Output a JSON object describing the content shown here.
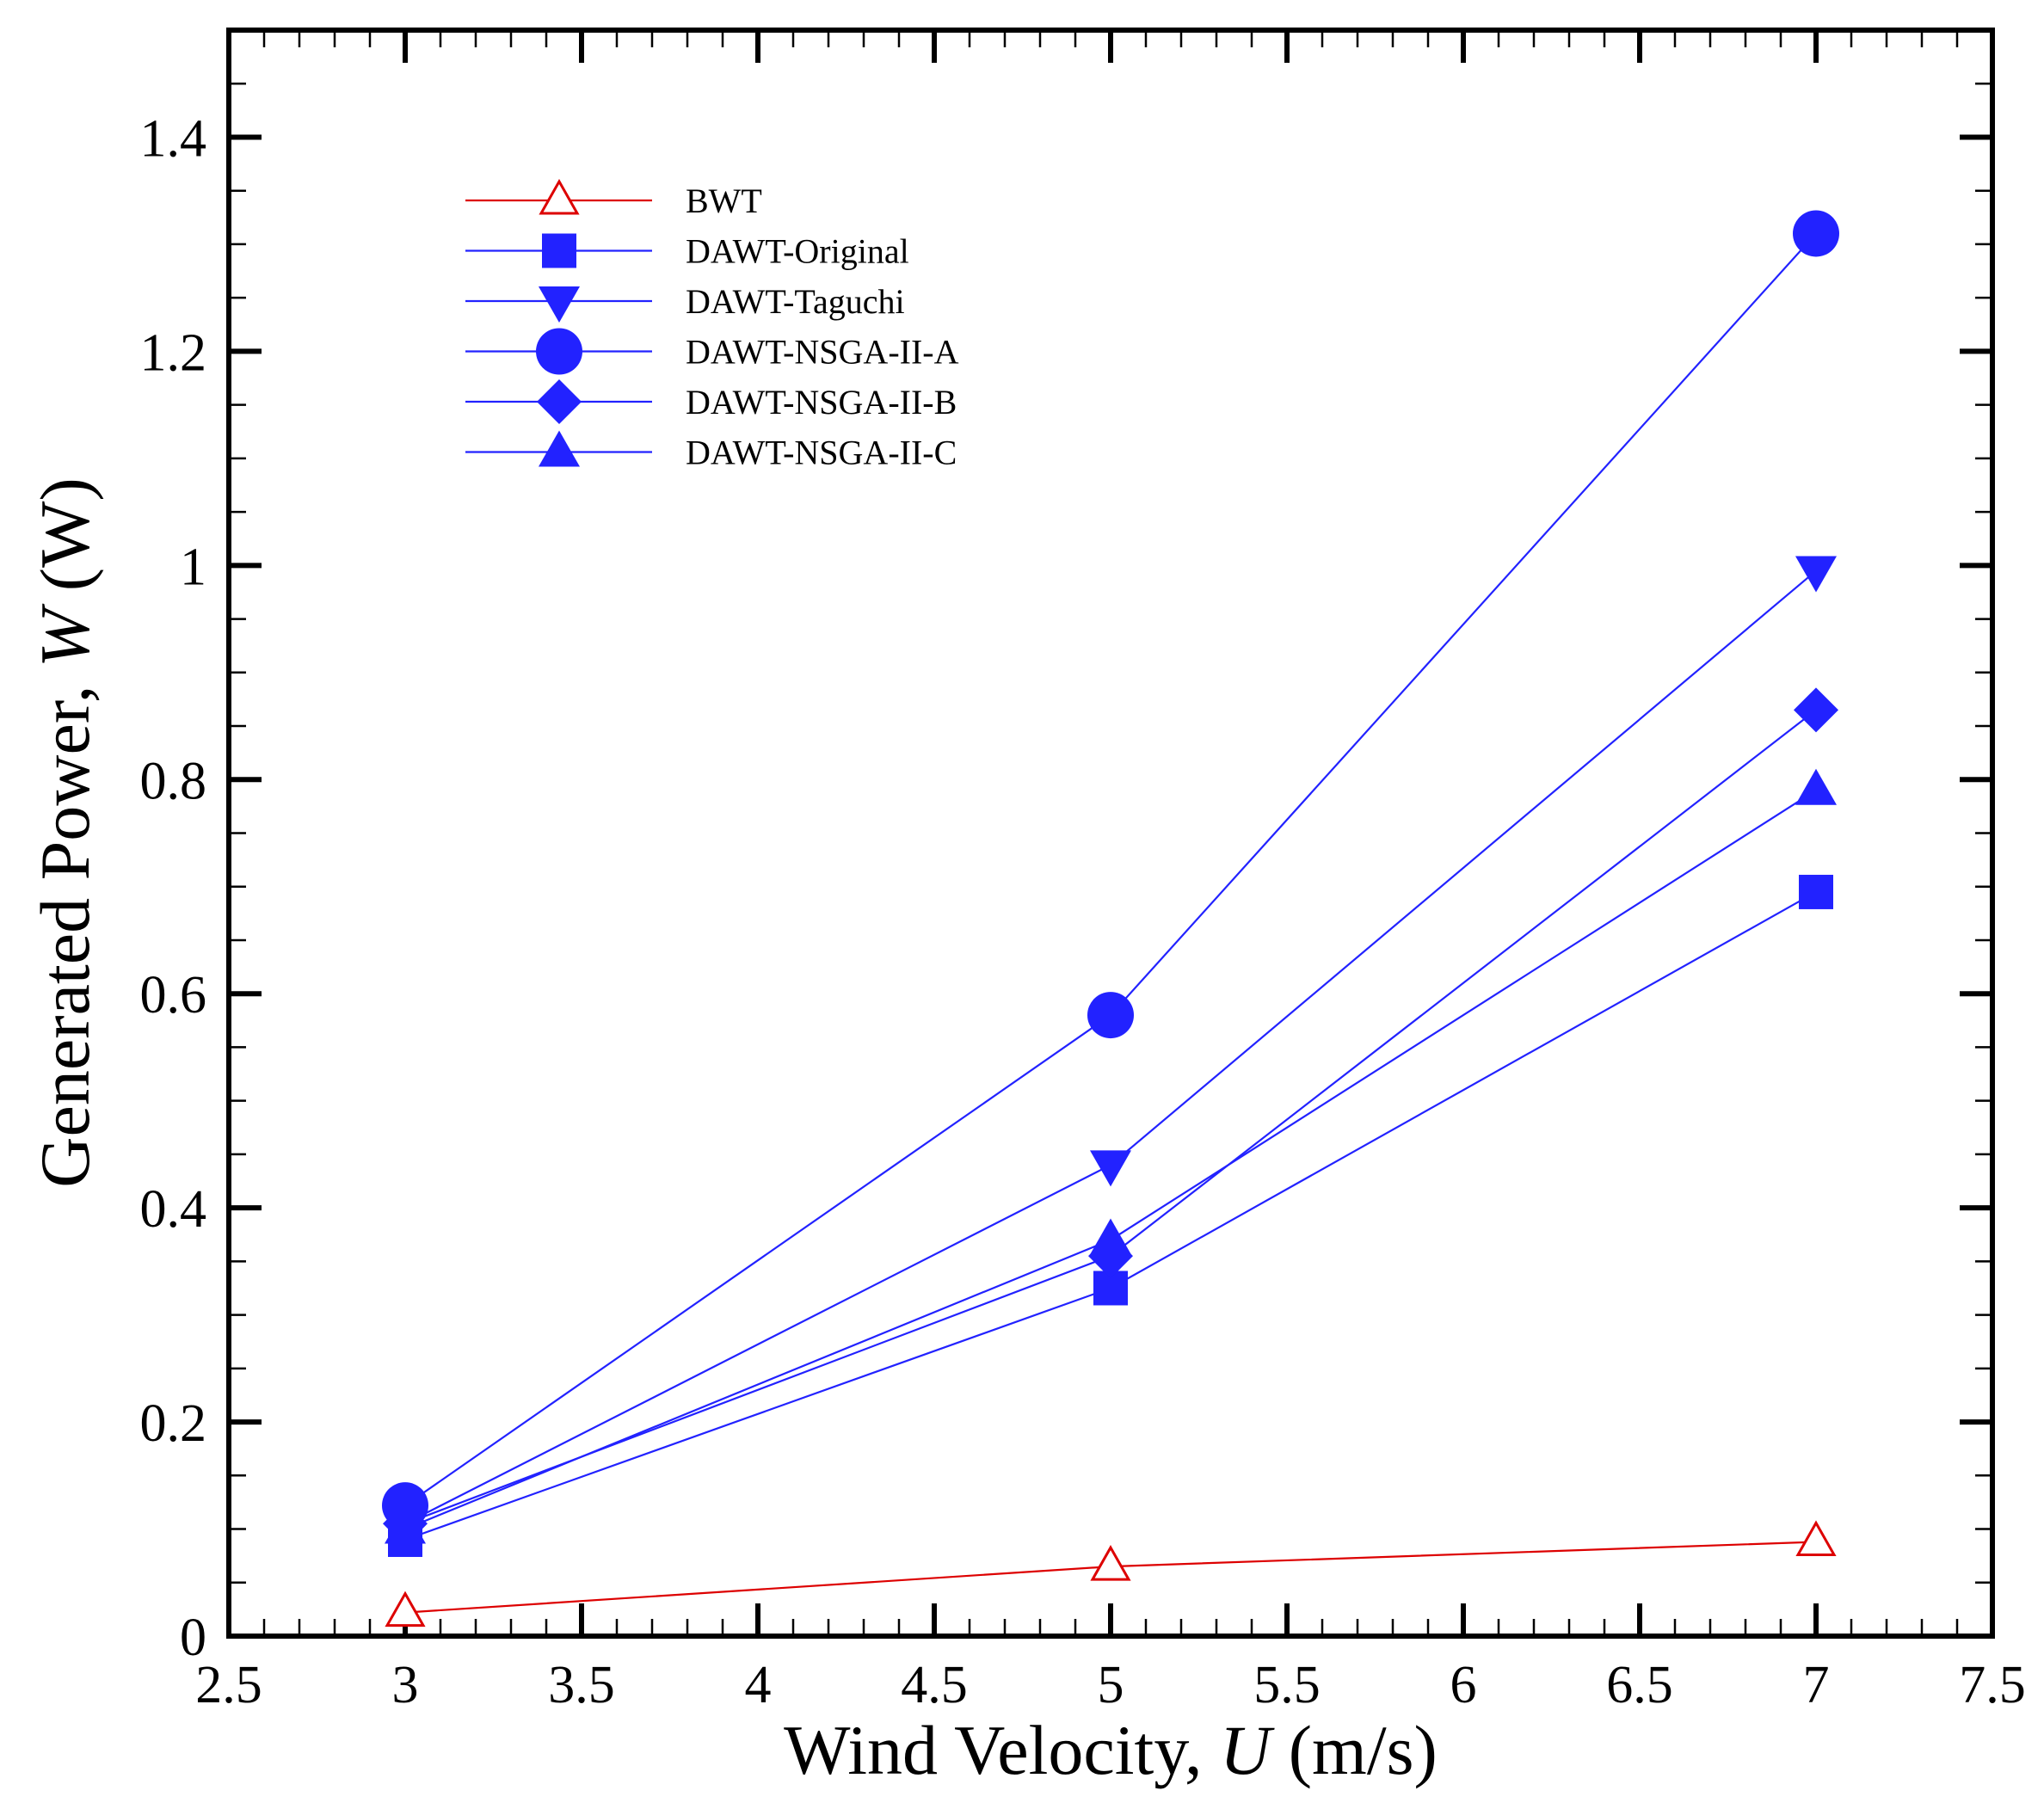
{
  "chart_data": {
    "type": "line",
    "xlabel": "Wind Velocity, U (m/s)",
    "xlabel_parts": {
      "before": "Wind Velocity, ",
      "italic": "U",
      "after": " (m/s)"
    },
    "ylabel": "Generated Power, W (W)",
    "ylabel_parts": {
      "before": "Generated Power, ",
      "italic": "W",
      "after": " (W)"
    },
    "xlim": [
      2.5,
      7.5
    ],
    "ylim": [
      0,
      1.5
    ],
    "xticks": [
      2.5,
      3,
      3.5,
      4,
      4.5,
      5,
      5.5,
      6,
      6.5,
      7,
      7.5
    ],
    "xtick_labels": [
      "2.5",
      "3",
      "3.5",
      "4",
      "4.5",
      "5",
      "5.5",
      "6",
      "6.5",
      "7",
      "7.5"
    ],
    "yticks": [
      0,
      0.2,
      0.4,
      0.6,
      0.8,
      1,
      1.2,
      1.4
    ],
    "ytick_labels": [
      "0",
      "0.2",
      "0.4",
      "0.6",
      "0.8",
      "1",
      "1.2",
      "1.4"
    ],
    "x": [
      3,
      5,
      7
    ],
    "legend_position": "top-left",
    "series": [
      {
        "name": "BWT",
        "color": "#dd0000",
        "marker": "triangle-up-open",
        "values": [
          0.022,
          0.065,
          0.088
        ]
      },
      {
        "name": "DAWT-Original",
        "color": "#2222ff",
        "marker": "square",
        "values": [
          0.09,
          0.325,
          0.695
        ]
      },
      {
        "name": "DAWT-Taguchi",
        "color": "#2222ff",
        "marker": "triangle-down",
        "values": [
          0.105,
          0.44,
          0.995
        ]
      },
      {
        "name": "DAWT-NSGA-II-A",
        "color": "#2222ff",
        "marker": "circle",
        "values": [
          0.122,
          0.58,
          1.31
        ]
      },
      {
        "name": "DAWT-NSGA-II-B",
        "color": "#2222ff",
        "marker": "diamond",
        "values": [
          0.105,
          0.355,
          0.865
        ]
      },
      {
        "name": "DAWT-NSGA-II-C",
        "color": "#2222ff",
        "marker": "triangle-up",
        "values": [
          0.1,
          0.37,
          0.79
        ]
      }
    ]
  }
}
